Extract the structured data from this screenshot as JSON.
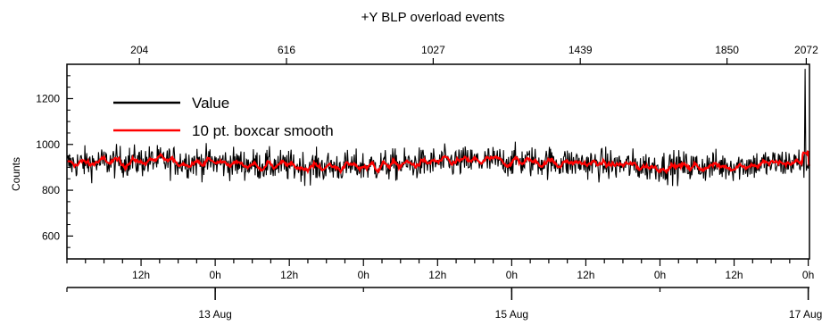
{
  "chart_data": {
    "type": "line",
    "title": "+Y BLP overload events",
    "ylabel": "Counts",
    "xlabel": "",
    "ylim": [
      500,
      1350
    ],
    "y_ticks": [
      600,
      800,
      1000,
      1200
    ],
    "top_axis_ticks": [
      "204",
      "616",
      "1027",
      "1439",
      "1850",
      "2072"
    ],
    "top_axis_positions": [
      204,
      616,
      1027,
      1439,
      1850,
      2072
    ],
    "index_range": [
      1,
      2081
    ],
    "x_tick_labels": [
      "12h",
      "0h",
      "12h",
      "0h",
      "12h",
      "0h",
      "12h",
      "0h",
      "12h",
      "0h"
    ],
    "x_tick_hours": [
      12,
      24,
      36,
      48,
      60,
      72,
      84,
      96,
      108,
      120
    ],
    "date_labels": [
      "13 Aug",
      "15 Aug",
      "17 Aug"
    ],
    "date_hours": [
      24,
      72,
      120
    ],
    "time_range_hours": [
      0,
      120.2
    ],
    "grid": false,
    "legend_position": "top-left",
    "series": [
      {
        "name": "Value",
        "color": "#000000",
        "mean": 915,
        "noise": 45,
        "spike_at_end": 1330
      },
      {
        "name": "10 pt. boxcar smooth",
        "color": "#ff0000",
        "window": 10
      }
    ]
  }
}
